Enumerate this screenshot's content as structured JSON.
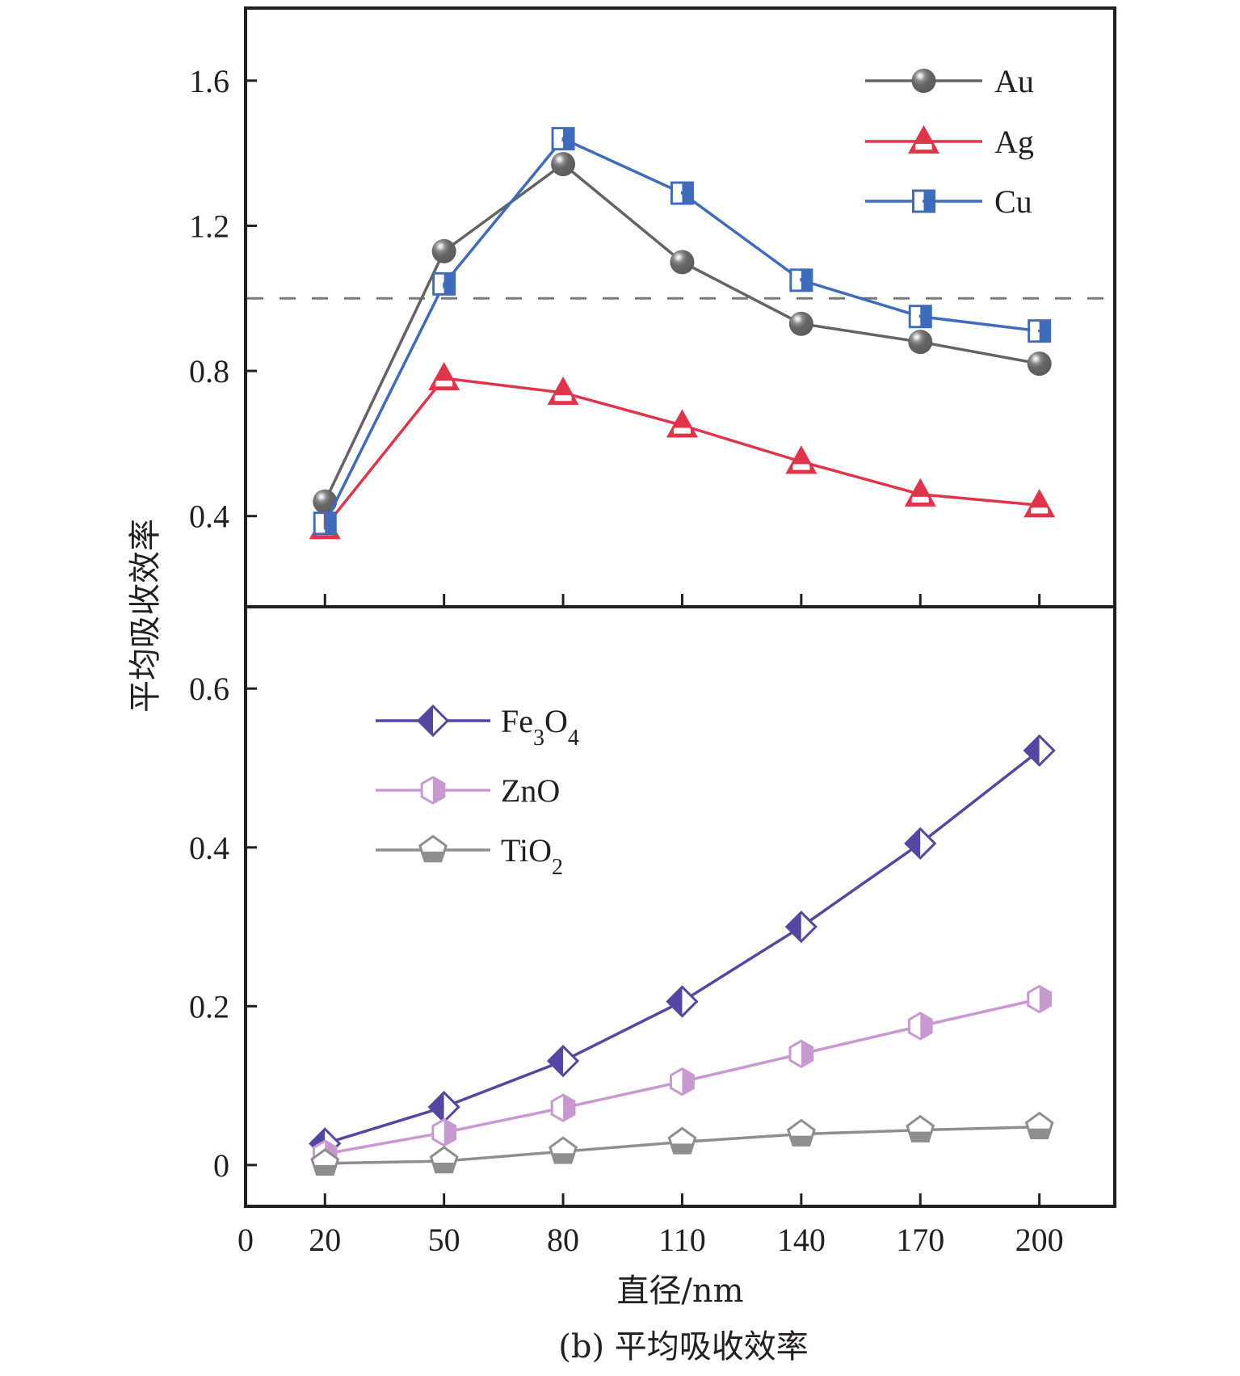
{
  "chart_data": [
    {
      "panel": "top",
      "type": "line",
      "x": [
        20,
        50,
        80,
        110,
        140,
        170,
        200
      ],
      "xlim": [
        0,
        219
      ],
      "ylim": [
        0.15,
        1.8
      ],
      "yticks": [
        0.4,
        0.8,
        1.2,
        1.6
      ],
      "ytick_labels": [
        "0.4",
        "0.8",
        "1.2",
        "1.6"
      ],
      "reference_line": {
        "y": 1.0,
        "style": "dashed",
        "color": "#7a7a7a"
      },
      "legend_position": "top-right",
      "series": [
        {
          "name": "Au",
          "marker": "sphere",
          "color": "#636363",
          "values": [
            0.44,
            1.13,
            1.37,
            1.1,
            0.93,
            0.88,
            0.82
          ]
        },
        {
          "name": "Ag",
          "marker": "triangle-half",
          "color": "#e0344a",
          "values": [
            0.37,
            0.78,
            0.74,
            0.65,
            0.55,
            0.46,
            0.43
          ]
        },
        {
          "name": "Cu",
          "marker": "square-half",
          "color": "#3f6bbd",
          "values": [
            0.38,
            1.04,
            1.44,
            1.29,
            1.05,
            0.95,
            0.91
          ]
        }
      ]
    },
    {
      "panel": "bottom",
      "type": "line",
      "x": [
        20,
        50,
        80,
        110,
        140,
        170,
        200
      ],
      "xlim": [
        0,
        219
      ],
      "ylim": [
        -0.052,
        0.703
      ],
      "yticks": [
        0,
        0.2,
        0.4,
        0.6
      ],
      "ytick_labels": [
        "0",
        "0.2",
        "0.4",
        "0.6"
      ],
      "legend_position": "top-left",
      "series": [
        {
          "name": "Fe3O4",
          "label_parts": [
            "Fe",
            "3",
            "O",
            "4"
          ],
          "marker": "diamond-half",
          "color": "#5646a3",
          "values": [
            0.027,
            0.073,
            0.131,
            0.206,
            0.3,
            0.405,
            0.522
          ]
        },
        {
          "name": "ZnO",
          "label_parts": [
            "ZnO"
          ],
          "marker": "hexagon-half",
          "color": "#c898d0",
          "values": [
            0.014,
            0.041,
            0.072,
            0.105,
            0.14,
            0.175,
            0.209
          ]
        },
        {
          "name": "TiO2",
          "label_parts": [
            "TiO",
            "2"
          ],
          "marker": "pentagon-half",
          "color": "#8e8e8e",
          "values": [
            0.002,
            0.005,
            0.017,
            0.029,
            0.039,
            0.044,
            0.048
          ]
        }
      ]
    }
  ],
  "xaxis": {
    "ticks": [
      0,
      20,
      50,
      80,
      110,
      140,
      170,
      200
    ],
    "tick_labels": [
      "0",
      "20",
      "50",
      "80",
      "110",
      "140",
      "170",
      "200"
    ],
    "label": "直径/nm"
  },
  "yaxis": {
    "label": "平均吸收效率"
  },
  "caption": "(b) 平均吸收效率",
  "colors": {
    "axis": "#231f20",
    "background": "#ffffff"
  }
}
